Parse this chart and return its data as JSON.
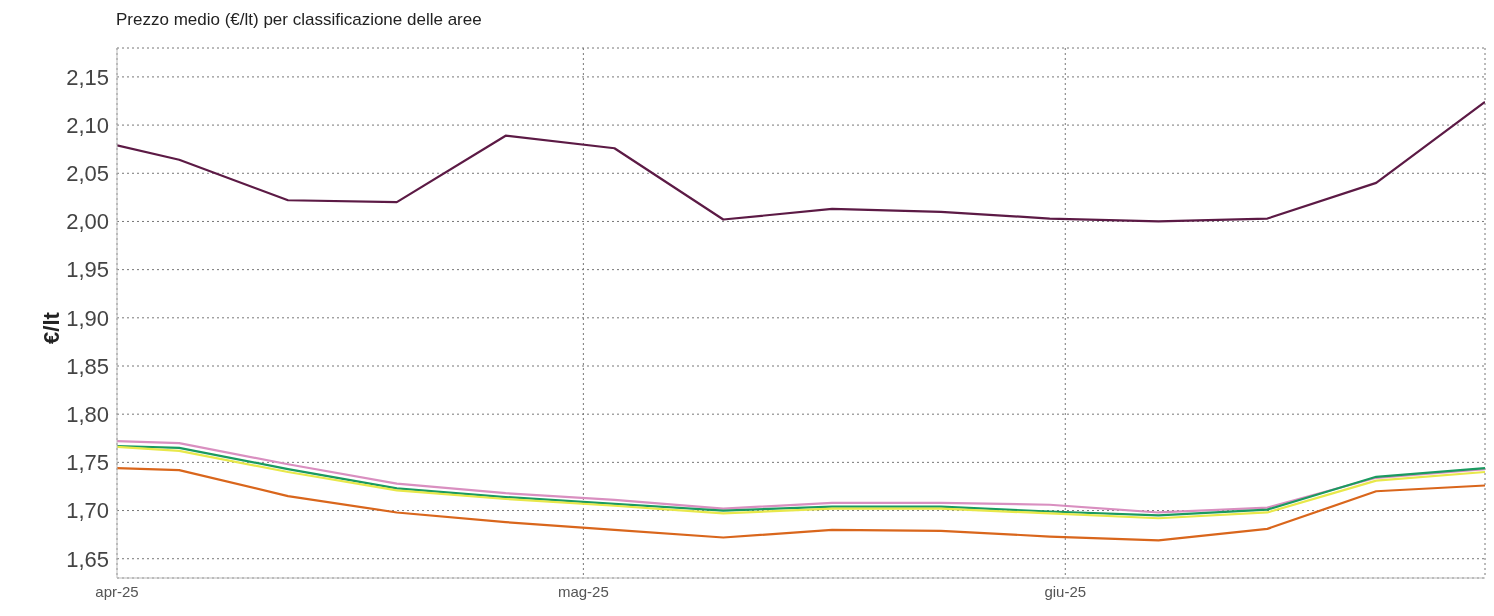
{
  "chart_data": {
    "type": "line",
    "title": "Prezzo medio (€/lt) per classificazione delle aree",
    "ylabel": "€/lt",
    "x": [
      "2025-04-01",
      "2025-04-05",
      "2025-04-12",
      "2025-04-19",
      "2025-04-26",
      "2025-05-03",
      "2025-05-10",
      "2025-05-17",
      "2025-05-24",
      "2025-05-31",
      "2025-06-07",
      "2025-06-14",
      "2025-06-21",
      "2025-06-28"
    ],
    "series": [
      {
        "color": "#5c1a45",
        "values": [
          2.079,
          2.064,
          2.022,
          2.02,
          2.089,
          2.076,
          2.002,
          2.013,
          2.01,
          2.003,
          2.0,
          2.003,
          2.04,
          2.124
        ]
      },
      {
        "color": "#d98fc0",
        "values": [
          1.772,
          1.77,
          1.748,
          1.728,
          1.718,
          1.711,
          1.702,
          1.708,
          1.708,
          1.706,
          1.698,
          1.703,
          1.734,
          1.743
        ]
      },
      {
        "color": "#1a9a60",
        "values": [
          1.767,
          1.765,
          1.743,
          1.723,
          1.714,
          1.707,
          1.7,
          1.704,
          1.704,
          1.699,
          1.695,
          1.701,
          1.735,
          1.744
        ]
      },
      {
        "color": "#e8e84a",
        "values": [
          1.766,
          1.762,
          1.74,
          1.721,
          1.712,
          1.705,
          1.697,
          1.702,
          1.702,
          1.697,
          1.692,
          1.698,
          1.731,
          1.74
        ]
      },
      {
        "color": "#d9661c",
        "values": [
          1.744,
          1.742,
          1.715,
          1.698,
          1.688,
          1.68,
          1.672,
          1.68,
          1.679,
          1.673,
          1.669,
          1.681,
          1.72,
          1.726
        ]
      }
    ],
    "xlim": [
      "2025-04-01",
      "2025-06-28"
    ],
    "xticks": [
      {
        "value": "2025-04-01",
        "label": "apr-25"
      },
      {
        "value": "2025-05-01",
        "label": "mag-25"
      },
      {
        "value": "2025-06-01",
        "label": "giu-25"
      }
    ],
    "ylim": [
      1.63,
      2.18
    ],
    "yticks": [
      {
        "value": 1.65,
        "label": "1,65"
      },
      {
        "value": 1.7,
        "label": "1,70"
      },
      {
        "value": 1.75,
        "label": "1,75"
      },
      {
        "value": 1.8,
        "label": "1,80"
      },
      {
        "value": 1.85,
        "label": "1,85"
      },
      {
        "value": 1.9,
        "label": "1,90"
      },
      {
        "value": 1.95,
        "label": "1,95"
      },
      {
        "value": 2.0,
        "label": "2,00"
      },
      {
        "value": 2.05,
        "label": "2,05"
      },
      {
        "value": 2.1,
        "label": "2,10"
      },
      {
        "value": 2.15,
        "label": "2,15"
      }
    ],
    "grid": true,
    "legend": false,
    "marker": "none",
    "line_style": "solid"
  }
}
